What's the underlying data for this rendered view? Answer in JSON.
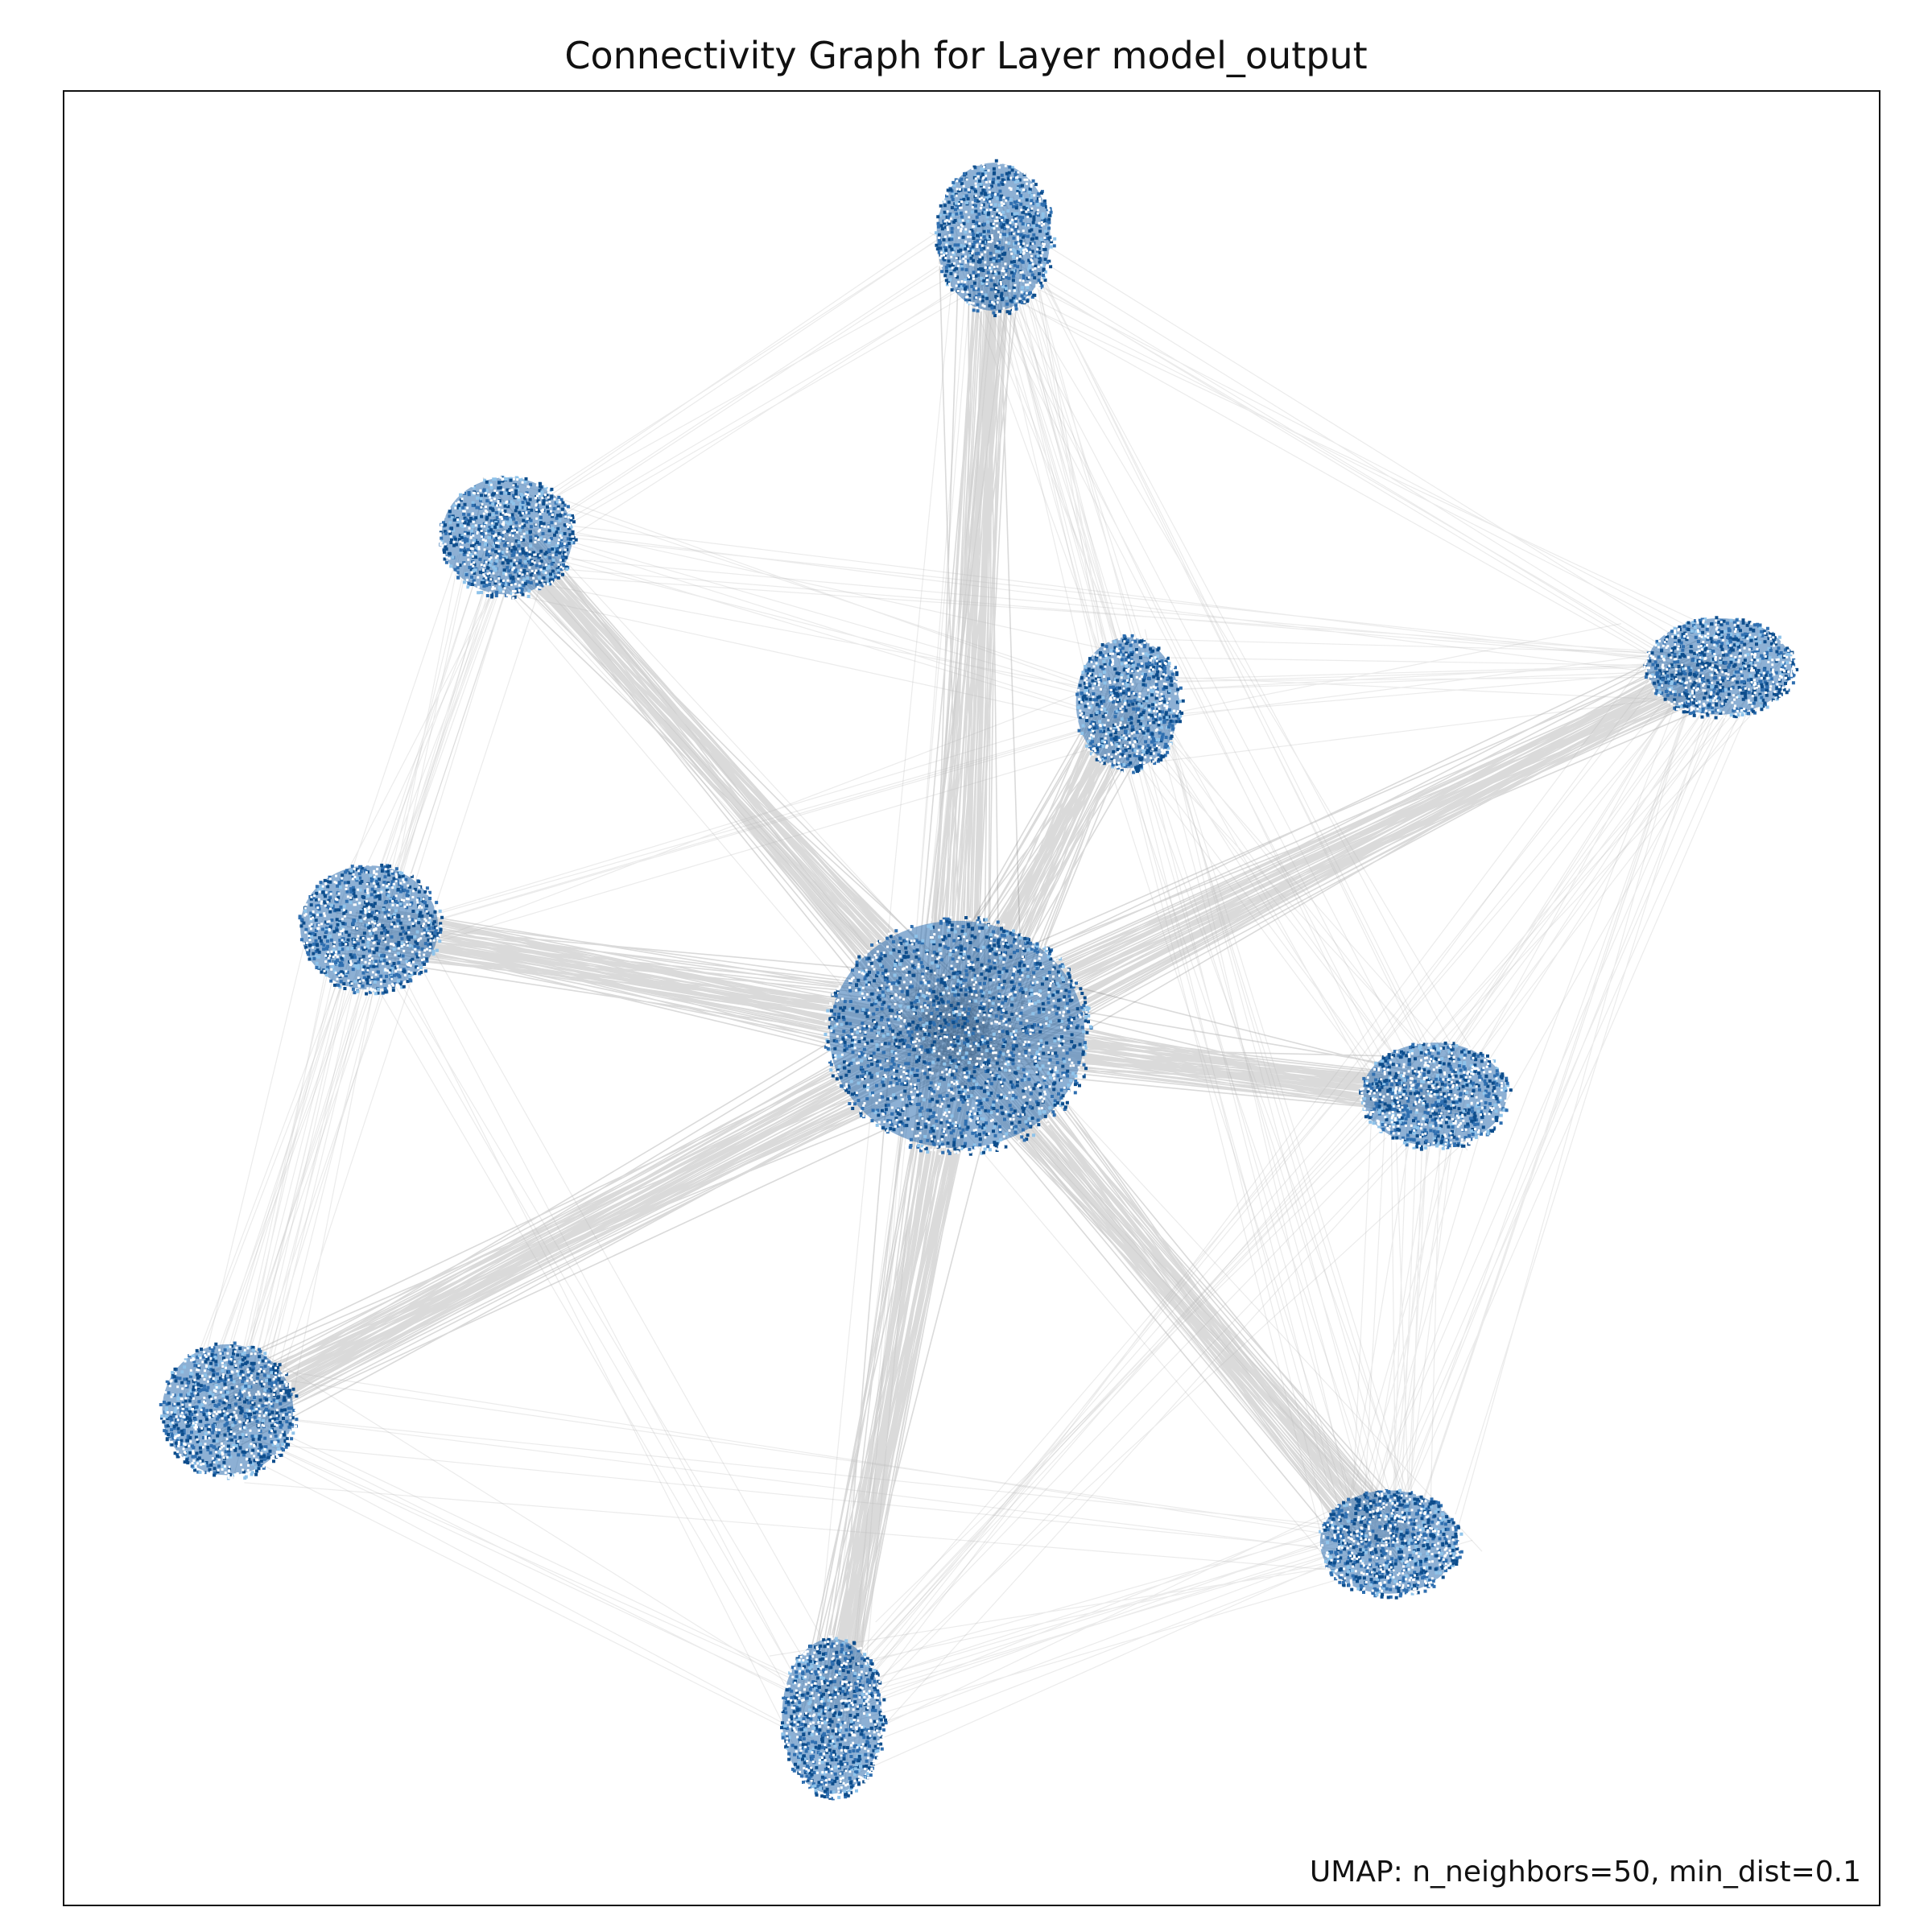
{
  "figure": {
    "title": "Connectivity Graph for Layer model_output",
    "annotation": "UMAP: n_neighbors=50, min_dist=0.1"
  },
  "chart_data": {
    "type": "scatter",
    "title": "Connectivity Graph for Layer model_output",
    "xlabel": "",
    "ylabel": "",
    "axis_ticks": "none",
    "xlim": [
      0,
      100
    ],
    "ylim": [
      0,
      100
    ],
    "colors": {
      "point": "#2f6fb0",
      "point_dark": "#0d4d8c",
      "point_light": "#8fc3ea",
      "edge_strong": "#555555",
      "edge_faint": "#b8b8b8"
    },
    "clusters": [
      {
        "id": "c0",
        "x": 49.2,
        "y": 48.0,
        "rx": 7.4,
        "ry": 6.6,
        "n": 1500
      },
      {
        "id": "c1",
        "x": 51.2,
        "y": 92.0,
        "rx": 3.3,
        "ry": 4.3,
        "n": 700
      },
      {
        "id": "c2",
        "x": 24.4,
        "y": 75.5,
        "rx": 3.8,
        "ry": 3.4,
        "n": 700
      },
      {
        "id": "c3",
        "x": 58.6,
        "y": 66.3,
        "rx": 3.0,
        "ry": 3.8,
        "n": 600
      },
      {
        "id": "c4",
        "x": 91.2,
        "y": 68.3,
        "rx": 4.2,
        "ry": 2.8,
        "n": 700
      },
      {
        "id": "c5",
        "x": 16.8,
        "y": 53.9,
        "rx": 4.0,
        "ry": 3.6,
        "n": 700
      },
      {
        "id": "c6",
        "x": 75.5,
        "y": 44.7,
        "rx": 4.2,
        "ry": 3.0,
        "n": 700
      },
      {
        "id": "c7",
        "x": 9.0,
        "y": 27.3,
        "rx": 3.8,
        "ry": 3.8,
        "n": 750
      },
      {
        "id": "c8",
        "x": 73.0,
        "y": 20.0,
        "rx": 4.0,
        "ry": 3.0,
        "n": 700
      },
      {
        "id": "c9",
        "x": 42.3,
        "y": 10.4,
        "rx": 2.9,
        "ry": 4.5,
        "n": 700
      }
    ],
    "edges": [
      {
        "from": "c0",
        "to": "c1",
        "weight": 1.0
      },
      {
        "from": "c0",
        "to": "c2",
        "weight": 1.0
      },
      {
        "from": "c0",
        "to": "c3",
        "weight": 1.0
      },
      {
        "from": "c0",
        "to": "c4",
        "weight": 1.0
      },
      {
        "from": "c0",
        "to": "c5",
        "weight": 1.0
      },
      {
        "from": "c0",
        "to": "c6",
        "weight": 1.0
      },
      {
        "from": "c0",
        "to": "c7",
        "weight": 1.0
      },
      {
        "from": "c0",
        "to": "c8",
        "weight": 1.0
      },
      {
        "from": "c0",
        "to": "c9",
        "weight": 1.0
      },
      {
        "from": "c1",
        "to": "c2",
        "weight": 0.15
      },
      {
        "from": "c1",
        "to": "c4",
        "weight": 0.15
      },
      {
        "from": "c1",
        "to": "c3",
        "weight": 0.2
      },
      {
        "from": "c1",
        "to": "c6",
        "weight": 0.15
      },
      {
        "from": "c1",
        "to": "c8",
        "weight": 0.15
      },
      {
        "from": "c2",
        "to": "c3",
        "weight": 0.15
      },
      {
        "from": "c2",
        "to": "c5",
        "weight": 0.15
      },
      {
        "from": "c2",
        "to": "c7",
        "weight": 0.2
      },
      {
        "from": "c2",
        "to": "c8",
        "weight": 0.1
      },
      {
        "from": "c3",
        "to": "c4",
        "weight": 0.2
      },
      {
        "from": "c3",
        "to": "c6",
        "weight": 0.15
      },
      {
        "from": "c3",
        "to": "c8",
        "weight": 0.1
      },
      {
        "from": "c4",
        "to": "c6",
        "weight": 0.25
      },
      {
        "from": "c4",
        "to": "c8",
        "weight": 0.2
      },
      {
        "from": "c4",
        "to": "c9",
        "weight": 0.1
      },
      {
        "from": "c5",
        "to": "c7",
        "weight": 0.25
      },
      {
        "from": "c5",
        "to": "c9",
        "weight": 0.1
      },
      {
        "from": "c5",
        "to": "c3",
        "weight": 0.1
      },
      {
        "from": "c6",
        "to": "c8",
        "weight": 0.3
      },
      {
        "from": "c6",
        "to": "c9",
        "weight": 0.15
      },
      {
        "from": "c7",
        "to": "c9",
        "weight": 0.12
      },
      {
        "from": "c7",
        "to": "c8",
        "weight": 0.05
      },
      {
        "from": "c8",
        "to": "c9",
        "weight": 0.25
      },
      {
        "from": "c2",
        "to": "c4",
        "weight": 0.1
      },
      {
        "from": "c1",
        "to": "c9",
        "weight": 0.05
      }
    ]
  }
}
